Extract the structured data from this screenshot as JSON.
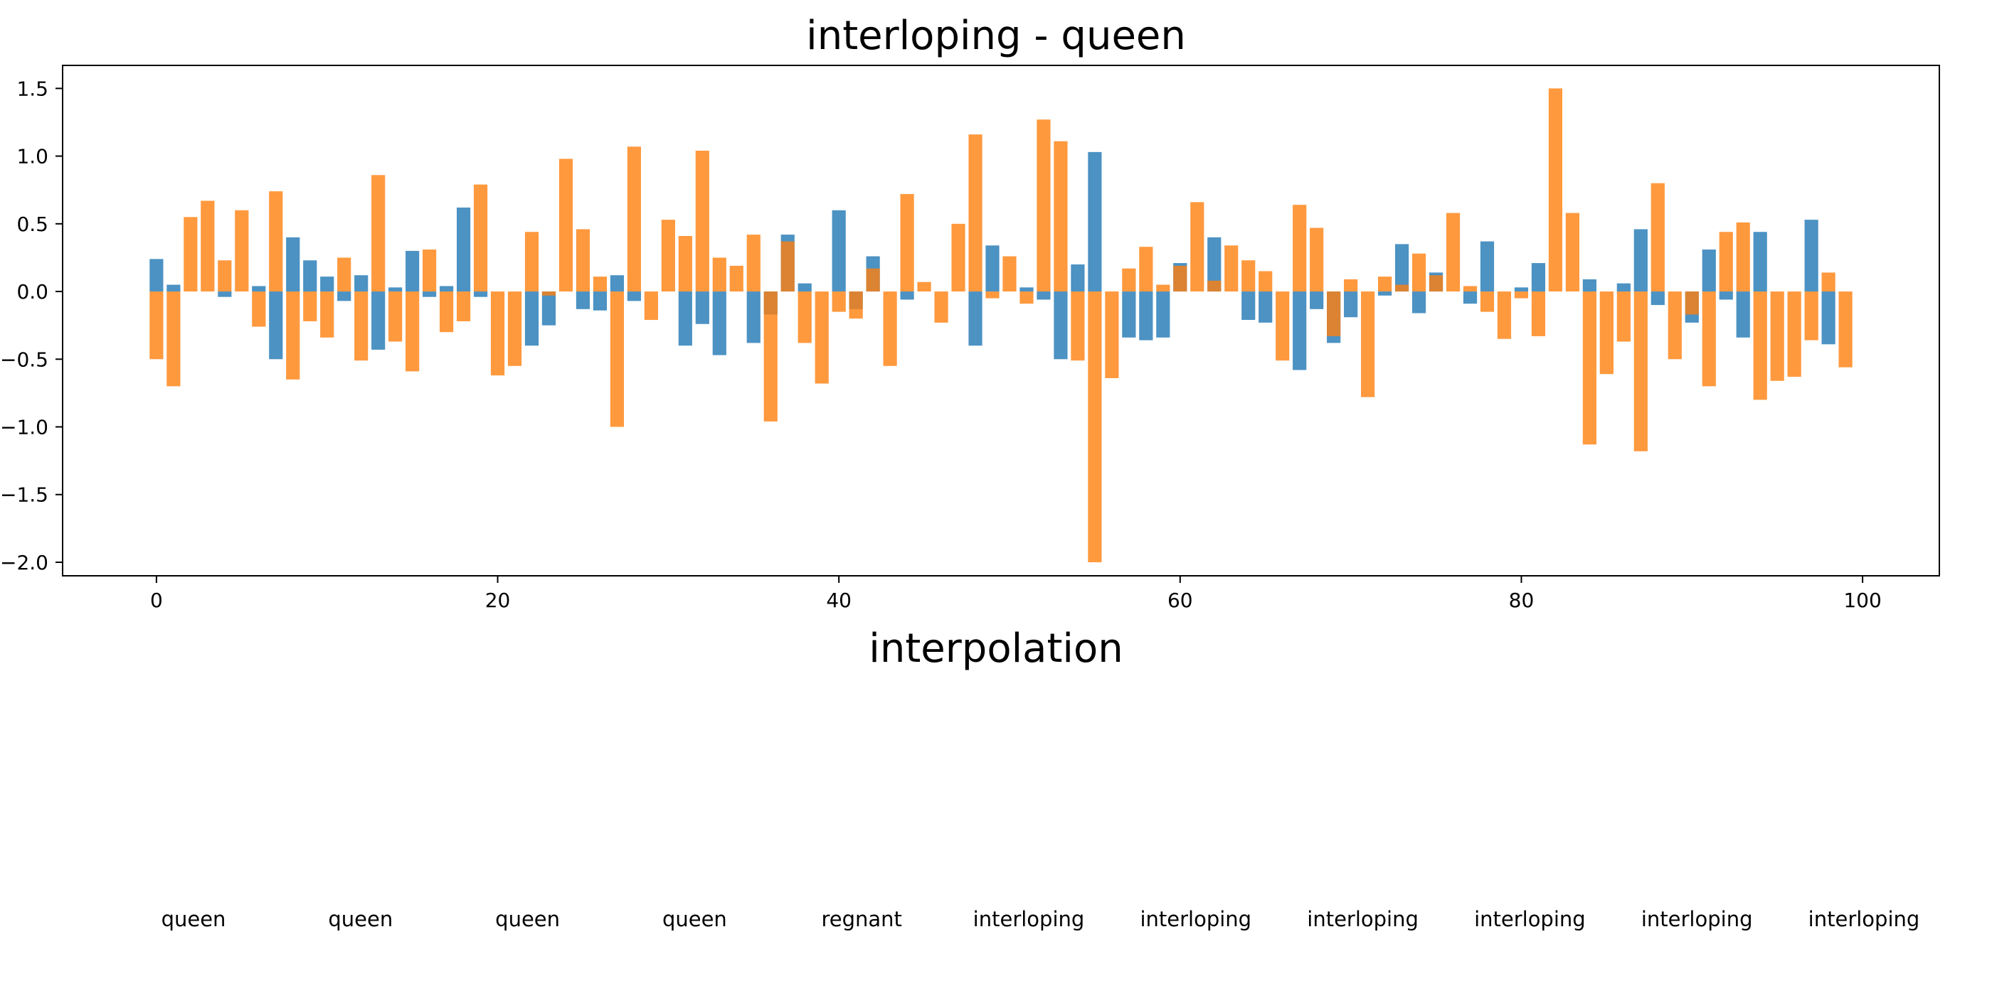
{
  "figure": {
    "title": "interloping - queen",
    "subtitle": "interpolation",
    "words": [
      "queen",
      "queen",
      "queen",
      "queen",
      "regnant",
      "interloping",
      "interloping",
      "interloping",
      "interloping",
      "interloping",
      "interloping"
    ]
  },
  "chart_data": {
    "type": "bar",
    "title": "interloping - queen",
    "xlim": [
      -5.5,
      104.5
    ],
    "ylim": [
      -2.1,
      1.67
    ],
    "xticks": [
      0,
      20,
      40,
      60,
      80,
      100
    ],
    "yticks": [
      -2.0,
      -1.5,
      -1.0,
      -0.5,
      0.0,
      0.5,
      1.0,
      1.5
    ],
    "grid": false,
    "colors": [
      "#1f77b4",
      "#ff7f0e"
    ],
    "bar_alpha": 0.8,
    "series": [
      {
        "values": [
          0.24,
          0.05,
          0.0,
          0.0,
          -0.04,
          0.0,
          0.04,
          -0.5,
          0.4,
          0.23,
          0.11,
          -0.07,
          0.12,
          -0.43,
          0.03,
          0.3,
          -0.04,
          0.04,
          0.62,
          -0.04,
          0.0,
          0.0,
          -0.4,
          -0.25,
          0.0,
          -0.13,
          -0.14,
          0.12,
          -0.07,
          0.0,
          0.0,
          -0.4,
          -0.24,
          -0.47,
          0.0,
          -0.38,
          -0.17,
          0.42,
          0.06,
          0.0,
          0.6,
          -0.13,
          0.26,
          0.0,
          -0.06,
          0.0,
          0.0,
          0.0,
          -0.4,
          0.34,
          0.0,
          0.03,
          -0.06,
          -0.5,
          0.2,
          1.03,
          0.0,
          -0.34,
          -0.36,
          -0.34,
          0.21,
          0.0,
          0.4,
          0.0,
          -0.21,
          -0.23,
          0.0,
          -0.58,
          -0.13,
          -0.38,
          -0.19,
          0.0,
          -0.03,
          0.35,
          -0.16,
          0.14,
          0.0,
          -0.09,
          0.37,
          0.0,
          0.03,
          0.21,
          0.0,
          0.0,
          0.09,
          0.0,
          0.06,
          0.46,
          -0.1,
          0.0,
          -0.23,
          0.31,
          -0.06,
          -0.34,
          0.44,
          0.0,
          0.0,
          0.53,
          -0.39,
          0.0
        ]
      },
      {
        "values": [
          -0.5,
          -0.7,
          0.55,
          0.67,
          0.23,
          0.6,
          -0.26,
          0.74,
          -0.65,
          -0.22,
          -0.34,
          0.25,
          -0.51,
          0.86,
          -0.37,
          -0.59,
          0.31,
          -0.3,
          -0.22,
          0.79,
          -0.62,
          -0.55,
          0.44,
          -0.03,
          0.98,
          0.46,
          0.11,
          -1.0,
          1.07,
          -0.21,
          0.53,
          0.41,
          1.04,
          0.25,
          0.19,
          0.42,
          -0.96,
          0.37,
          -0.38,
          -0.68,
          -0.15,
          -0.2,
          0.17,
          -0.55,
          0.72,
          0.07,
          -0.23,
          0.5,
          1.16,
          -0.05,
          0.26,
          -0.09,
          1.27,
          1.11,
          -0.51,
          -2.0,
          -0.64,
          0.17,
          0.33,
          0.05,
          0.19,
          0.66,
          0.08,
          0.34,
          0.23,
          0.15,
          -0.51,
          0.64,
          0.47,
          -0.33,
          0.09,
          -0.78,
          0.11,
          0.05,
          0.28,
          0.12,
          0.58,
          0.04,
          -0.15,
          -0.35,
          -0.05,
          -0.33,
          1.5,
          0.58,
          -1.13,
          -0.61,
          -0.37,
          -1.18,
          0.8,
          -0.5,
          -0.17,
          -0.7,
          0.44,
          0.51,
          -0.8,
          -0.66,
          -0.63,
          -0.36,
          0.14,
          -0.56
        ]
      }
    ]
  }
}
